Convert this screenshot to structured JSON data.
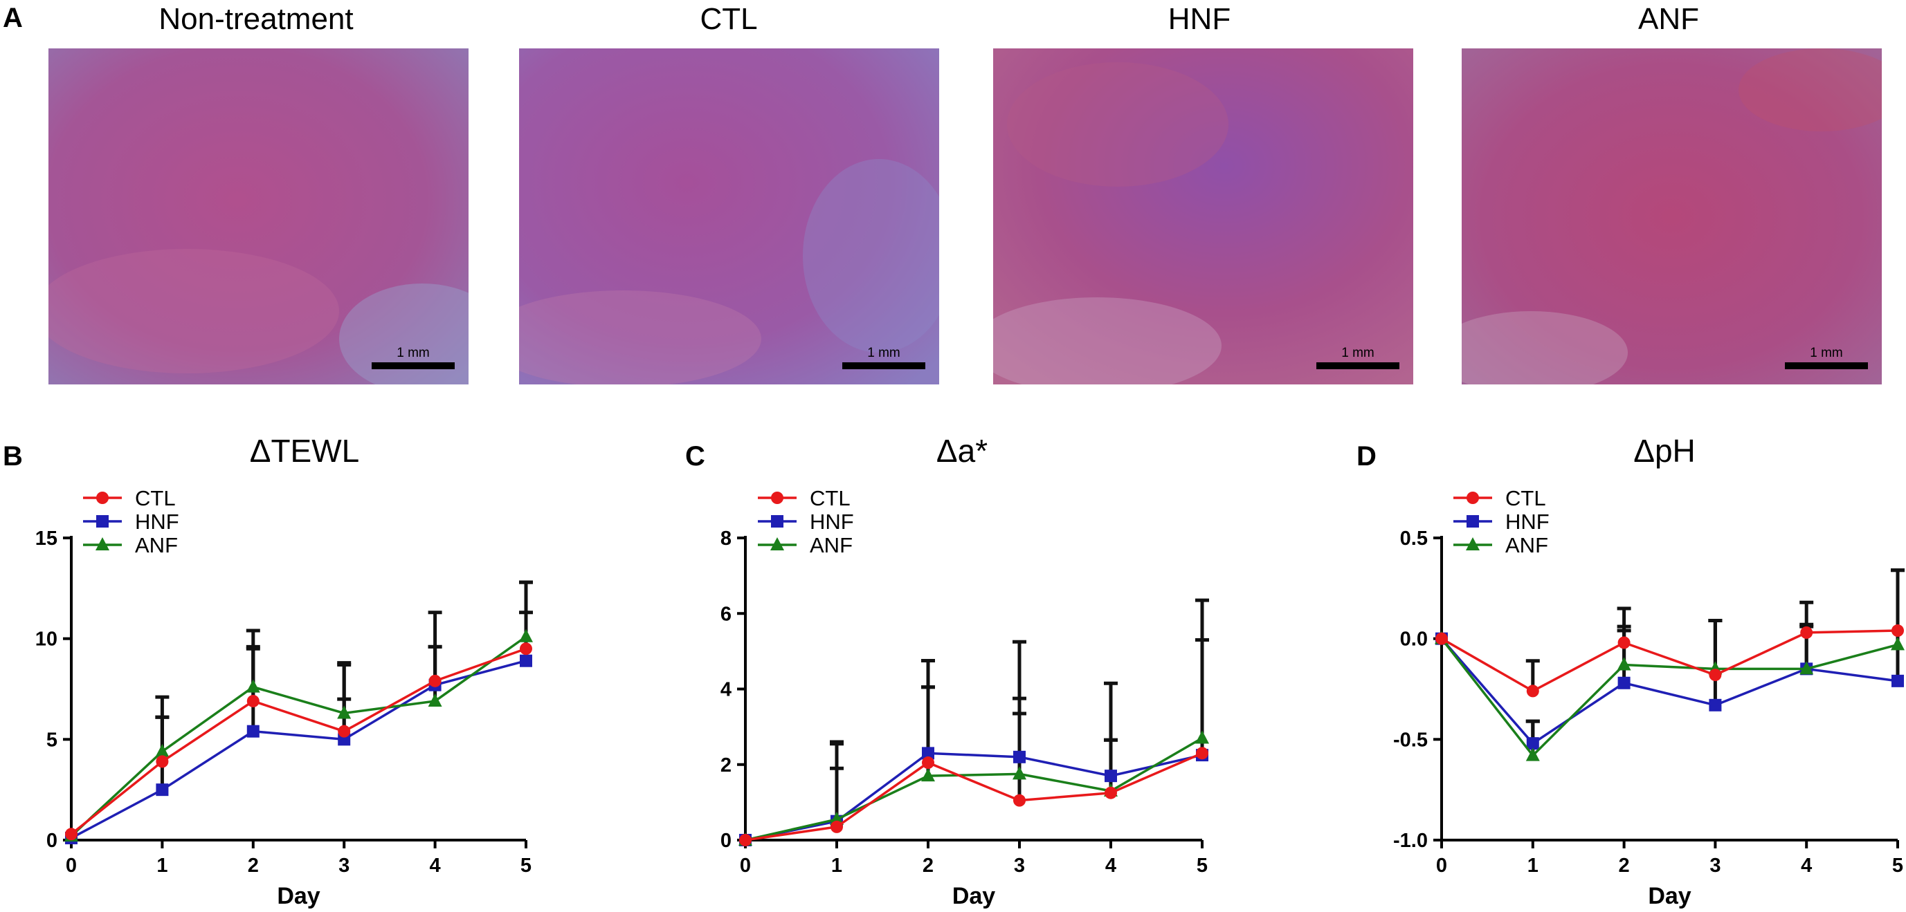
{
  "panels": {
    "a": "A",
    "b": "B",
    "c": "C",
    "d": "D"
  },
  "photos": [
    {
      "title": "Non-treatment",
      "scale": "1 mm"
    },
    {
      "title": "CTL",
      "scale": "1 mm"
    },
    {
      "title": "HNF",
      "scale": "1 mm"
    },
    {
      "title": "ANF",
      "scale": "1 mm"
    }
  ],
  "colors": {
    "CTL": "#e8191b",
    "HNF": "#1f1fb4",
    "ANF": "#1a7f1a",
    "errbar": "#111111"
  },
  "chart_data": [
    {
      "type": "line",
      "title": "ΔTEWL",
      "xlabel": "Day",
      "ylabel": "",
      "x": [
        0,
        1,
        2,
        3,
        4,
        5
      ],
      "xticks": [
        "0",
        "1",
        "2",
        "3",
        "4",
        "5"
      ],
      "ylim": [
        0,
        15
      ],
      "yticks": [
        0,
        5,
        10,
        15
      ],
      "ytick_labels": [
        "0",
        "5",
        "10",
        "15"
      ],
      "legend_position": "top-left",
      "series": [
        {
          "name": "CTL",
          "marker": "circle",
          "values": [
            0.3,
            3.9,
            6.9,
            5.4,
            7.9,
            9.5
          ],
          "err": [
            0,
            2.2,
            2.6,
            1.6,
            1.7,
            1.8
          ]
        },
        {
          "name": "HNF",
          "marker": "square",
          "values": [
            0.1,
            2.5,
            5.4,
            5.0,
            7.7,
            8.9
          ],
          "err": [
            0,
            3.6,
            4.2,
            3.8,
            3.6,
            3.9
          ]
        },
        {
          "name": "ANF",
          "marker": "triangle",
          "values": [
            0.2,
            4.4,
            7.6,
            6.3,
            6.9,
            10.1
          ],
          "err": [
            0,
            2.7,
            2.8,
            2.4,
            2.7,
            2.7
          ]
        }
      ]
    },
    {
      "type": "line",
      "title": "Δa*",
      "xlabel": "Day",
      "ylabel": "",
      "x": [
        0,
        1,
        2,
        3,
        4,
        5
      ],
      "xticks": [
        "0",
        "1",
        "2",
        "3",
        "4",
        "5"
      ],
      "ylim": [
        0,
        8
      ],
      "yticks": [
        0,
        2,
        4,
        6,
        8
      ],
      "ytick_labels": [
        "0",
        "2",
        "4",
        "6",
        "8"
      ],
      "legend_position": "top-left",
      "series": [
        {
          "name": "CTL",
          "marker": "circle",
          "values": [
            0.0,
            0.35,
            2.05,
            1.05,
            1.25,
            2.3
          ],
          "err": [
            0,
            2.2,
            2.0,
            2.7,
            1.4,
            3.0
          ]
        },
        {
          "name": "HNF",
          "marker": "square",
          "values": [
            0.0,
            0.5,
            2.3,
            2.2,
            1.7,
            2.25
          ],
          "err": [
            0,
            2.1,
            2.45,
            3.05,
            2.45,
            4.1
          ]
        },
        {
          "name": "ANF",
          "marker": "triangle",
          "values": [
            0.0,
            0.55,
            1.7,
            1.75,
            1.3,
            2.7
          ],
          "err": [
            0,
            1.35,
            2.35,
            1.6,
            1.35,
            2.6
          ]
        }
      ]
    },
    {
      "type": "line",
      "title": "ΔpH",
      "xlabel": "Day",
      "ylabel": "",
      "x": [
        0,
        1,
        2,
        3,
        4,
        5
      ],
      "xticks": [
        "0",
        "1",
        "2",
        "3",
        "4",
        "5"
      ],
      "ylim": [
        -1.0,
        0.5
      ],
      "yticks": [
        -1.0,
        -0.5,
        0.0,
        0.5
      ],
      "ytick_labels": [
        "-1.0",
        "-0.5",
        "0.0",
        "0.5"
      ],
      "legend_position": "top-left",
      "series": [
        {
          "name": "CTL",
          "marker": "circle",
          "values": [
            0.0,
            -0.26,
            -0.02,
            -0.18,
            0.03,
            0.04
          ],
          "err": [
            0,
            0.15,
            0.17,
            0.27,
            0.15,
            0.3
          ]
        },
        {
          "name": "HNF",
          "marker": "square",
          "values": [
            0.0,
            -0.52,
            -0.22,
            -0.33,
            -0.15,
            -0.21
          ],
          "err": [
            0,
            0.11,
            0.26,
            0.42,
            0.21,
            0.55
          ]
        },
        {
          "name": "ANF",
          "marker": "triangle",
          "values": [
            0.0,
            -0.58,
            -0.13,
            -0.15,
            -0.15,
            -0.03
          ],
          "err": [
            0,
            0.17,
            0.19,
            0.24,
            0.22,
            0.37
          ]
        }
      ]
    }
  ]
}
